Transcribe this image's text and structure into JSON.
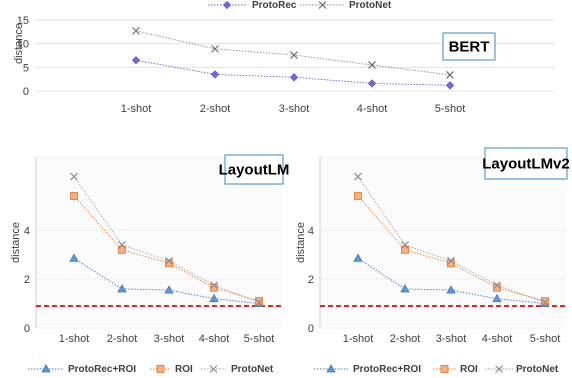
{
  "chart_data": [
    {
      "type": "line",
      "title": "BERT",
      "ylabel": "distance",
      "categories": [
        "1-shot",
        "2-shot",
        "3-shot",
        "4-shot",
        "5-shot"
      ],
      "ylim": [
        0,
        15
      ],
      "yticks": [
        0,
        5,
        10,
        15
      ],
      "grid": true,
      "legend_position": "top",
      "series": [
        {
          "name": "ProtoRec",
          "values": [
            6.5,
            3.5,
            2.9,
            1.6,
            1.2
          ],
          "color": "#5B63C9",
          "marker": "diamond",
          "marker_fill": "#7E62D8"
        },
        {
          "name": "ProtoNet",
          "values": [
            12.7,
            8.9,
            7.6,
            5.5,
            3.4
          ],
          "color": "#8C8C8C",
          "marker": "x",
          "marker_fill": "#6E6E6E"
        }
      ]
    },
    {
      "type": "line",
      "title": "LayoutLM",
      "ylabel": "distance",
      "categories": [
        "1-shot",
        "2-shot",
        "3-shot",
        "4-shot",
        "5-shot"
      ],
      "ylim": [
        0,
        7
      ],
      "yticks": [
        0,
        2,
        4
      ],
      "grid": true,
      "baseline": 0.9,
      "legend_position": "bottom",
      "series": [
        {
          "name": "ProtoRec+ROI",
          "values": [
            2.85,
            1.6,
            1.55,
            1.2,
            1.0
          ],
          "color": "#4472C4",
          "marker": "triangle",
          "marker_fill": "#5B9BD5"
        },
        {
          "name": "ROI",
          "values": [
            5.4,
            3.2,
            2.65,
            1.65,
            1.1
          ],
          "color": "#ED7D31",
          "marker": "square",
          "marker_fill": "#F4B183"
        },
        {
          "name": "ProtoNet",
          "values": [
            6.2,
            3.4,
            2.75,
            1.75,
            1.05
          ],
          "color": "#A5A5A5",
          "marker": "x",
          "marker_fill": "#8C8C8C"
        }
      ]
    },
    {
      "type": "line",
      "title": "LayoutLMv2",
      "ylabel": "distance",
      "categories": [
        "1-shot",
        "2-shot",
        "3-shot",
        "4-shot",
        "5-shot"
      ],
      "ylim": [
        0,
        7
      ],
      "yticks": [
        0,
        2,
        4
      ],
      "grid": true,
      "baseline": 0.9,
      "legend_position": "bottom",
      "series": [
        {
          "name": "ProtoRec+ROI",
          "values": [
            2.85,
            1.6,
            1.55,
            1.2,
            1.0
          ],
          "color": "#4472C4",
          "marker": "triangle",
          "marker_fill": "#5B9BD5"
        },
        {
          "name": "ROI",
          "values": [
            5.4,
            3.2,
            2.65,
            1.65,
            1.1
          ],
          "color": "#ED7D31",
          "marker": "square",
          "marker_fill": "#F4B183"
        },
        {
          "name": "ProtoNet",
          "values": [
            6.2,
            3.4,
            2.75,
            1.75,
            1.05
          ],
          "color": "#A5A5A5",
          "marker": "x",
          "marker_fill": "#8C8C8C"
        }
      ]
    }
  ],
  "colors": {
    "baseline": "#C00000",
    "grid": "#D9D9D9",
    "title_box_border": "#5B9BD5"
  }
}
